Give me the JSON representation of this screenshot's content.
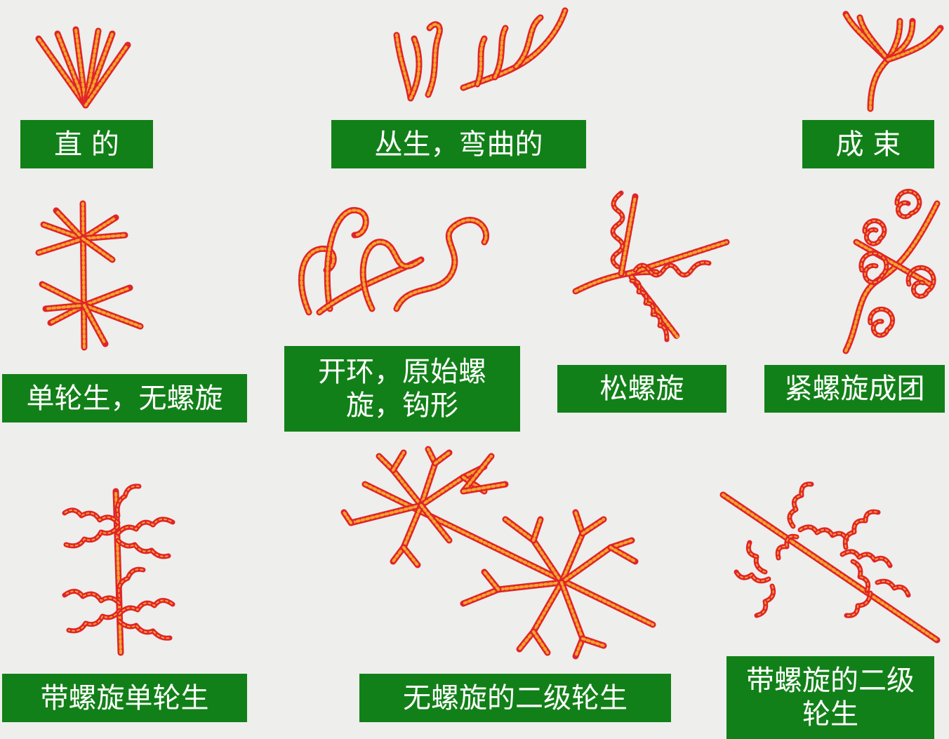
{
  "colors": {
    "background": "#eeeeec",
    "label_bg": "#128018",
    "label_fg": "#ffffff",
    "hypha_red": "#e0242a",
    "hypha_core": "#f5a52a"
  },
  "labels": {
    "straight": "直 的",
    "tufted_curved": "丛生，弯曲的",
    "fasciculate": "成 束",
    "single_whorl_no_spiral": "单轮生，无螺旋",
    "open_loop_hook": "开环，原始螺旋，钩形",
    "loose_spiral": "松螺旋",
    "tight_spiral_cluster": "紧螺旋成团",
    "single_whorl_spiral": "带螺旋单轮生",
    "double_whorl_no_spiral": "无螺旋的二级轮生",
    "double_whorl_spiral": "带螺旋的二级轮生"
  }
}
